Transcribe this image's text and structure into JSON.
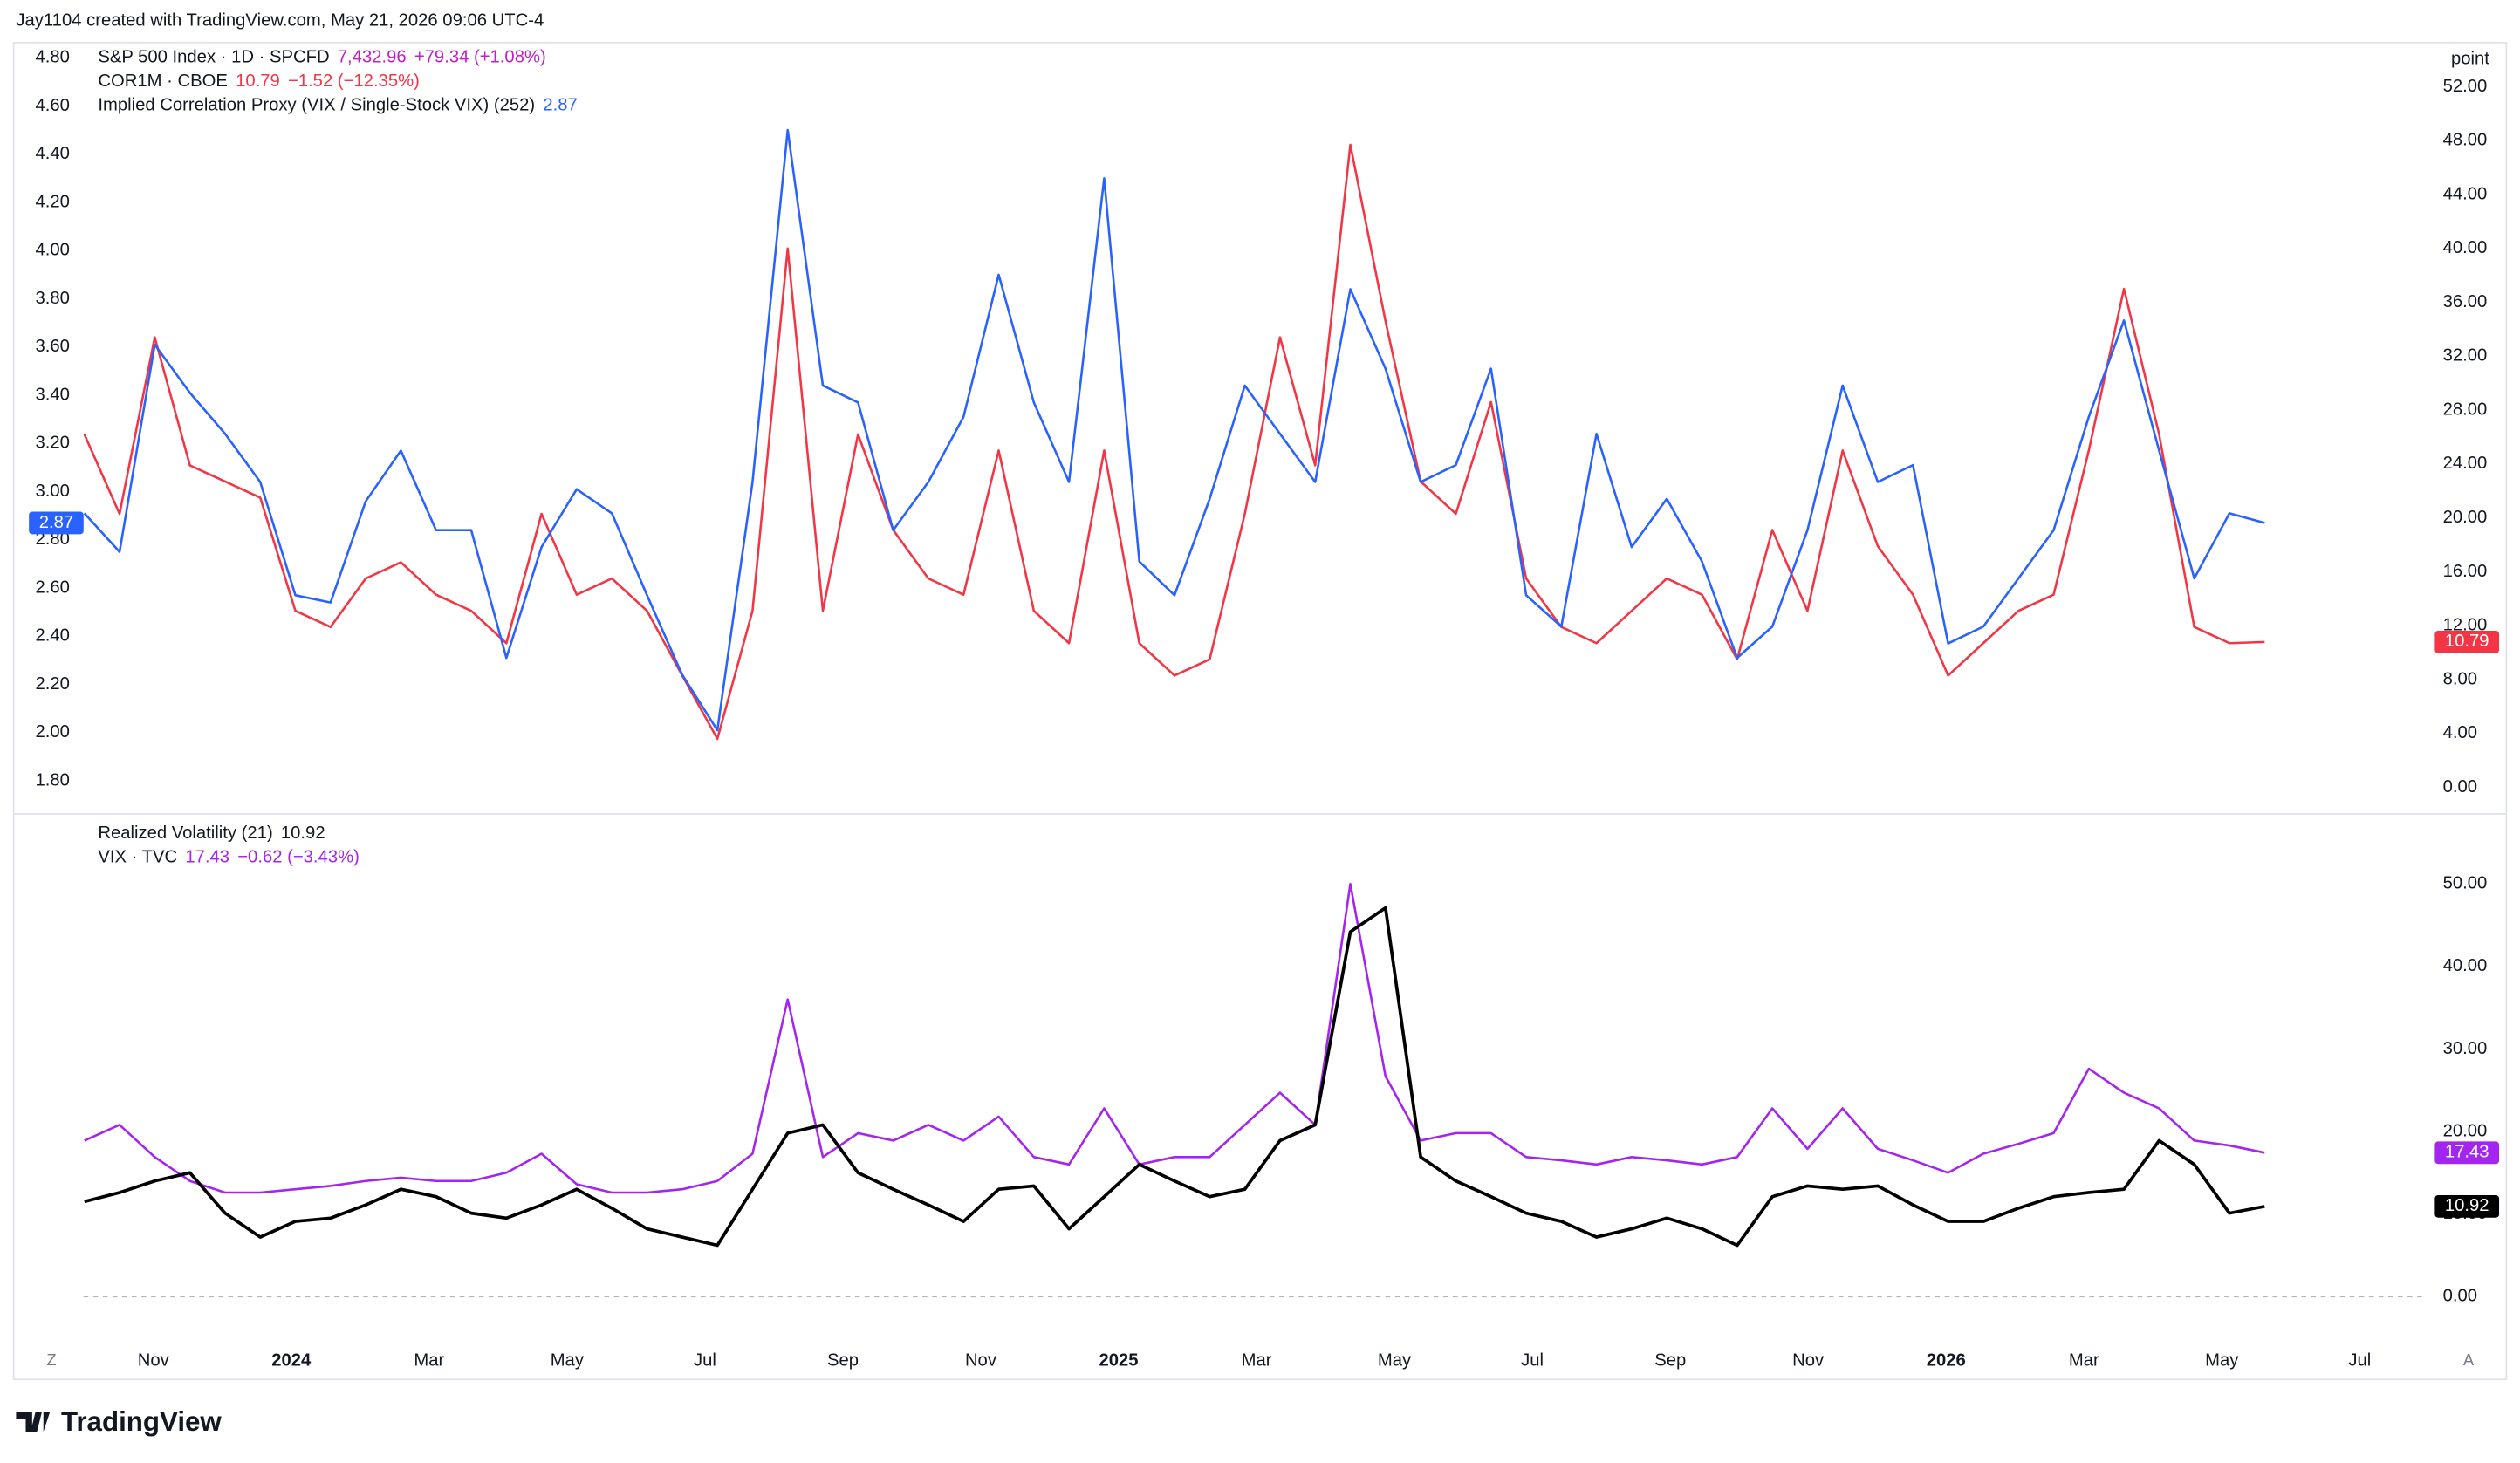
{
  "header": "Jay1104 created with TradingView.com, May 21, 2026 09:06 UTC-4",
  "footer_logo": "TradingView",
  "buttons": [
    "Z",
    "A"
  ],
  "chart_data": {
    "type": "line",
    "x": [
      2023.75,
      2023.7925,
      2023.835,
      2023.8775,
      2023.92,
      2023.9625,
      2024.005,
      2024.0475,
      2024.09,
      2024.1325,
      2024.175,
      2024.2175,
      2024.26,
      2024.3025,
      2024.345,
      2024.3875,
      2024.43,
      2024.4725,
      2024.515,
      2024.5575,
      2024.6,
      2024.6425,
      2024.685,
      2024.7275,
      2024.77,
      2024.8125,
      2024.855,
      2024.8975,
      2024.94,
      2024.9825,
      2025.025,
      2025.0675,
      2025.11,
      2025.1525,
      2025.195,
      2025.2375,
      2025.28,
      2025.3225,
      2025.365,
      2025.4075,
      2025.45,
      2025.4925,
      2025.535,
      2025.5775,
      2025.62,
      2025.6625,
      2025.705,
      2025.7475,
      2025.79,
      2025.8325,
      2025.875,
      2025.9175,
      2025.96,
      2026.0025,
      2026.045,
      2026.0875,
      2026.13,
      2026.1725,
      2026.215,
      2026.2575,
      2026.3,
      2026.3425,
      2026.385
    ],
    "xlim": [
      2023.749,
      2026.581
    ],
    "xticks": [
      {
        "value": 2023.8333,
        "label": "Nov"
      },
      2024,
      {
        "value": 2024.1667,
        "label": "Mar"
      },
      {
        "value": 2024.3333,
        "label": "May"
      },
      {
        "value": 2024.5,
        "label": "Jul"
      },
      {
        "value": 2024.6667,
        "label": "Sep"
      },
      {
        "value": 2024.8333,
        "label": "Nov"
      },
      2025,
      {
        "value": 2025.1667,
        "label": "Mar"
      },
      {
        "value": 2025.3333,
        "label": "May"
      },
      {
        "value": 2025.5,
        "label": "Jul"
      },
      {
        "value": 2025.6667,
        "label": "Sep"
      },
      {
        "value": 2025.8333,
        "label": "Nov"
      },
      2026,
      {
        "value": 2026.1667,
        "label": "Mar"
      },
      {
        "value": 2026.3333,
        "label": "May"
      },
      {
        "value": 2026.5,
        "label": "Jul"
      }
    ],
    "grid": false,
    "panels": [
      {
        "symbol_info": {
          "name": "S&P 500 Index · 1D · SPCFD",
          "last": "7,432.96",
          "change": "+79.34 (+1.08%)",
          "color": "#c21ec9"
        },
        "y_axis_side": "left",
        "ylim": [
          1.673,
          4.853
        ],
        "yticks": [
          {
            "value": 1.8,
            "label": "1.80"
          },
          {
            "value": 2.0,
            "label": "2.00"
          },
          {
            "value": 2.2,
            "label": "2.20"
          },
          {
            "value": 2.4,
            "label": "2.40"
          },
          {
            "value": 2.6,
            "label": "2.60"
          },
          {
            "value": 2.8,
            "label": "2.80"
          },
          {
            "value": 3.0,
            "label": "3.00"
          },
          {
            "value": 3.2,
            "label": "3.20"
          },
          {
            "value": 3.4,
            "label": "3.40"
          },
          {
            "value": 3.6,
            "label": "3.60"
          },
          {
            "value": 3.8,
            "label": "3.80"
          },
          {
            "value": 4.0,
            "label": "4.00"
          },
          {
            "value": 4.2,
            "label": "4.20"
          },
          {
            "value": 4.4,
            "label": "4.40"
          },
          {
            "value": 4.6,
            "label": "4.60"
          },
          {
            "value": 4.8,
            "label": "4.80"
          }
        ],
        "y2_unit": "point",
        "y2lim": [
          -1.79,
          55.1
        ],
        "y2ticks": [
          {
            "value": 0,
            "label": "0.00"
          },
          {
            "value": 4,
            "label": "4.00"
          },
          {
            "value": 8,
            "label": "8.00"
          },
          {
            "value": 12,
            "label": "12.00"
          },
          {
            "value": 16,
            "label": "16.00"
          },
          {
            "value": 20,
            "label": "20.00"
          },
          {
            "value": 24,
            "label": "24.00"
          },
          {
            "value": 28,
            "label": "28.00"
          },
          {
            "value": 32,
            "label": "32.00"
          },
          {
            "value": 36,
            "label": "36.00"
          },
          {
            "value": 40,
            "label": "40.00"
          },
          {
            "value": 44,
            "label": "44.00"
          },
          {
            "value": 48,
            "label": "48.00"
          },
          {
            "value": 52,
            "label": "52.00"
          }
        ],
        "series": [
          {
            "name": "COR1M · CBOE",
            "color": "#f23645",
            "axis": "y2",
            "change": "−1.52 (−12.35%)",
            "values": [
              26.2,
              20.3,
              33.4,
              23.9,
              22.7,
              21.5,
              13.1,
              11.9,
              15.5,
              16.7,
              14.3,
              13.1,
              10.7,
              20.3,
              14.3,
              15.5,
              13.1,
              8.3,
              3.6,
              13.1,
              40,
              13.1,
              26.2,
              19.1,
              15.5,
              14.3,
              25,
              13.1,
              10.7,
              25,
              10.7,
              8.3,
              9.5,
              20.3,
              33.4,
              23.9,
              47.7,
              34.6,
              22.7,
              20.3,
              28.6,
              15.5,
              11.9,
              10.7,
              13.1,
              15.5,
              14.3,
              9.5,
              19.1,
              13.1,
              25,
              17.9,
              14.3,
              8.3,
              10.7,
              13.1,
              14.3,
              25,
              37,
              26.2,
              11.9,
              10.7,
              10.79
            ]
          },
          {
            "name": "Implied Correlation Proxy (VIX / Single-Stock VIX) (252)",
            "color": "#2962ff",
            "axis": "y",
            "values": [
              2.91,
              2.75,
              3.61,
              3.41,
              3.24,
              3.04,
              2.57,
              2.54,
              2.96,
              3.17,
              2.84,
              2.84,
              2.31,
              2.77,
              3.01,
              2.91,
              2.57,
              2.24,
              2.01,
              3.04,
              4.5,
              3.44,
              3.37,
              2.84,
              3.04,
              3.31,
              3.9,
              3.37,
              3.04,
              4.3,
              2.71,
              2.57,
              2.97,
              3.44,
              3.24,
              3.04,
              3.84,
              3.51,
              3.04,
              3.11,
              3.51,
              2.57,
              2.44,
              3.24,
              2.77,
              2.97,
              2.71,
              2.31,
              2.44,
              2.84,
              3.44,
              3.04,
              3.11,
              2.37,
              2.44,
              2.64,
              2.84,
              3.31,
              3.71,
              3.17,
              2.64,
              2.91,
              2.87
            ]
          }
        ]
      },
      {
        "y_axis_side": "right",
        "zero_line": true,
        "ylim": [
          -4.5,
          58.2
        ],
        "yticks": [
          {
            "value": 0,
            "label": "0.00"
          },
          {
            "value": 10,
            "label": "10.00"
          },
          {
            "value": 20,
            "label": "20.00"
          },
          {
            "value": 30,
            "label": "30.00"
          },
          {
            "value": 40,
            "label": "40.00"
          },
          {
            "value": 50,
            "label": "50.00"
          }
        ],
        "series": [
          {
            "name": "VIX · TVC",
            "color": "#a424f0",
            "axis": "y",
            "change": "−0.62 (−3.43%)",
            "values": [
              18.9,
              20.8,
              16.9,
              14.0,
              12.6,
              12.6,
              13.0,
              13.4,
              14.0,
              14.4,
              14.0,
              14.0,
              15.0,
              17.3,
              13.6,
              12.6,
              12.6,
              13.0,
              14.0,
              17.3,
              36,
              16.9,
              19.8,
              18.9,
              20.8,
              18.9,
              21.8,
              16.9,
              16.0,
              22.8,
              16.0,
              16.9,
              16.9,
              20.8,
              24.7,
              20.8,
              50,
              26.7,
              18.9,
              19.8,
              19.8,
              16.9,
              16.5,
              16.0,
              16.9,
              16.5,
              16.0,
              16.9,
              22.8,
              17.9,
              22.8,
              17.9,
              16.5,
              15.0,
              17.3,
              18.5,
              19.8,
              27.6,
              24.7,
              22.8,
              18.9,
              18.3,
              17.43
            ]
          },
          {
            "name": "Realized Volatility (21)",
            "color": "#000000",
            "axis": "y",
            "values": [
              11.5,
              12.6,
              14.0,
              15.0,
              10.1,
              7.2,
              9.1,
              9.5,
              11.1,
              13.0,
              12.1,
              10.1,
              9.5,
              11.1,
              13.0,
              10.7,
              8.2,
              7.2,
              6.2,
              13.0,
              19.8,
              20.8,
              15.0,
              13.0,
              11.1,
              9.1,
              13.0,
              13.4,
              8.2,
              12.1,
              16.0,
              14.0,
              12.1,
              13.0,
              18.9,
              20.8,
              44.2,
              47.1,
              16.9,
              14.0,
              12.1,
              10.1,
              9.1,
              7.2,
              8.2,
              9.5,
              8.2,
              6.2,
              12.1,
              13.4,
              13.0,
              13.4,
              11.1,
              9.1,
              9.1,
              10.7,
              12.1,
              12.6,
              13.0,
              18.9,
              16.0,
              10.1,
              10.92
            ]
          }
        ]
      }
    ]
  }
}
